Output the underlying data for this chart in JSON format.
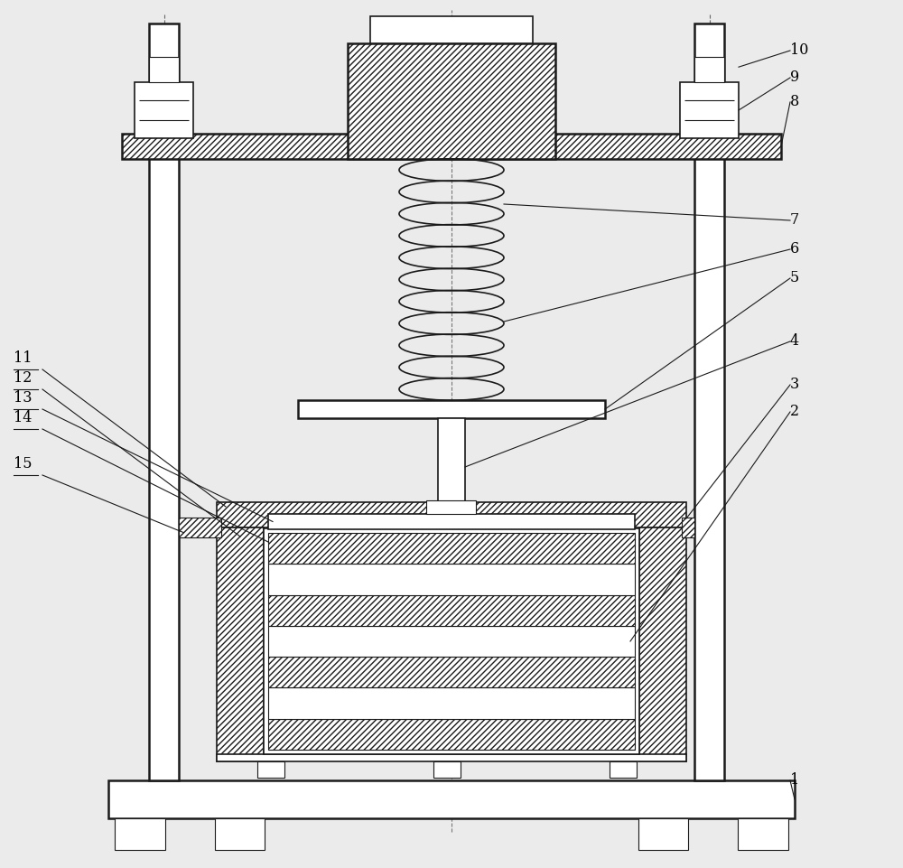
{
  "bg_color": "#ebebeb",
  "line_color": "#1a1a1a",
  "label_color": "#000000",
  "fig_width": 10.0,
  "fig_height": 9.61
}
